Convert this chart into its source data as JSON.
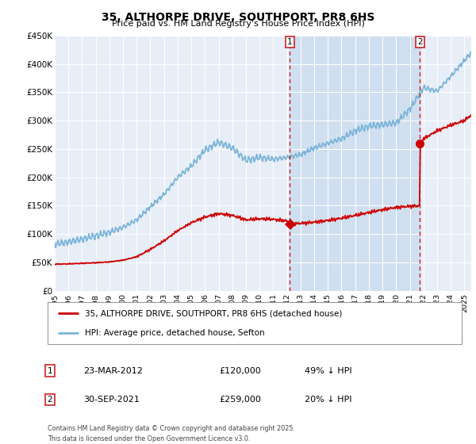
{
  "title": "35, ALTHORPE DRIVE, SOUTHPORT, PR8 6HS",
  "subtitle": "Price paid vs. HM Land Registry's House Price Index (HPI)",
  "ylabel_ticks": [
    "£0",
    "£50K",
    "£100K",
    "£150K",
    "£200K",
    "£250K",
    "£300K",
    "£350K",
    "£400K",
    "£450K"
  ],
  "ytick_values": [
    0,
    50000,
    100000,
    150000,
    200000,
    250000,
    300000,
    350000,
    400000,
    450000
  ],
  "hpi_color": "#7ab4d8",
  "price_color": "#cc0000",
  "chart_bg": "#e8eef8",
  "shade_color": "#d0dff0",
  "vline_color": "#cc0000",
  "purchase1_year": 2012.22,
  "purchase1_price": 120000,
  "purchase1_label": "23-MAR-2012",
  "purchase1_text": "£120,000",
  "purchase1_pct": "49% ↓ HPI",
  "purchase2_year": 2021.75,
  "purchase2_price": 259000,
  "purchase2_label": "30-SEP-2021",
  "purchase2_text": "£259,000",
  "purchase2_pct": "20% ↓ HPI",
  "legend_line1": "35, ALTHORPE DRIVE, SOUTHPORT, PR8 6HS (detached house)",
  "legend_line2": "HPI: Average price, detached house, Sefton",
  "footnote1": "Contains HM Land Registry data © Crown copyright and database right 2025.",
  "footnote2": "This data is licensed under the Open Government Licence v3.0.",
  "xstart": 1995,
  "xend": 2025.5,
  "ymin": 0,
  "ymax": 450000,
  "hpi_pts_x": [
    1995,
    1996,
    1997,
    1998,
    1999,
    2000,
    2001,
    2002,
    2003,
    2004,
    2005,
    2006,
    2007,
    2008,
    2009,
    2010,
    2011,
    2012,
    2013,
    2014,
    2015,
    2016,
    2017,
    2018,
    2019,
    2020,
    2021,
    2022,
    2023,
    2024,
    2025.5
  ],
  "hpi_pts_y": [
    82000,
    86000,
    91000,
    97000,
    103000,
    112000,
    125000,
    148000,
    170000,
    200000,
    220000,
    248000,
    262000,
    252000,
    230000,
    235000,
    232000,
    235000,
    240000,
    252000,
    260000,
    268000,
    282000,
    290000,
    293000,
    296000,
    320000,
    358000,
    352000,
    378000,
    420000
  ],
  "price_pts_x": [
    1995,
    1996,
    1997,
    1998,
    1999,
    2000,
    2001,
    2002,
    2003,
    2004,
    2005,
    2006,
    2007,
    2008,
    2009,
    2010,
    2011,
    2012.0,
    2012.22,
    2012.5,
    2013,
    2014,
    2015,
    2016,
    2017,
    2018,
    2019,
    2020,
    2021.0,
    2021.74,
    2021.76,
    2022,
    2023,
    2024,
    2025,
    2025.5
  ],
  "price_pts_y": [
    47000,
    47500,
    48500,
    49500,
    51000,
    54000,
    60000,
    73000,
    88000,
    106000,
    120000,
    130000,
    136000,
    133000,
    125000,
    127000,
    126000,
    123000,
    120000,
    118000,
    119000,
    121000,
    124000,
    128000,
    133000,
    138000,
    143000,
    147000,
    149000,
    150000,
    259000,
    268000,
    282000,
    292000,
    300000,
    310000
  ]
}
